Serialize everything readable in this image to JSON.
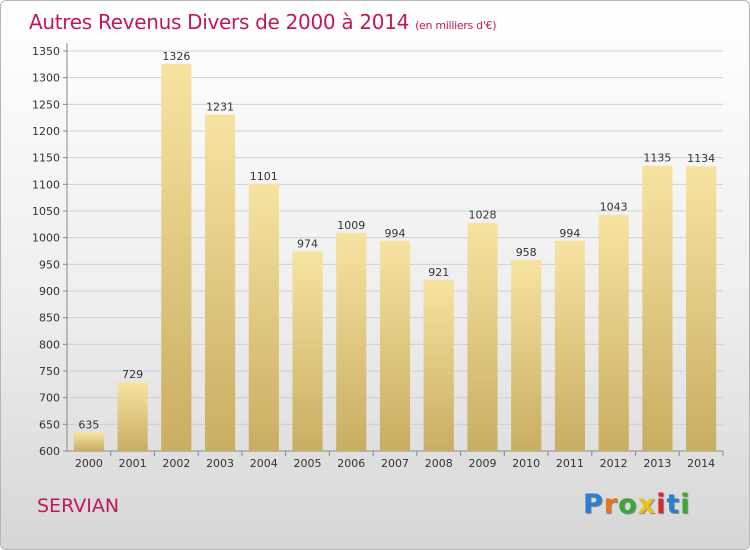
{
  "title": "Autres Revenus Divers de 2000 à 2014",
  "subtitle": "(en milliers d'€)",
  "place_name": "SERVIAN",
  "logo": {
    "letters": [
      "P",
      "r",
      "o",
      "x",
      "i",
      "t",
      "i"
    ],
    "colors": [
      "#2a7fd4",
      "#e8731a",
      "#3aa836",
      "#e8c11a",
      "#d62a2a",
      "#2a7fd4",
      "#3aa836"
    ]
  },
  "colors": {
    "accent": "#c2185b",
    "bar_top": "#f7e3a0",
    "bar_bottom": "#c9ad62",
    "grid": "#d0d0d0"
  },
  "chart_data": {
    "type": "bar",
    "title": "Autres Revenus Divers de 2000 à 2014",
    "subtitle": "(en milliers d'€)",
    "categories": [
      "2000",
      "2001",
      "2002",
      "2003",
      "2004",
      "2005",
      "2006",
      "2007",
      "2008",
      "2009",
      "2010",
      "2011",
      "2012",
      "2013",
      "2014"
    ],
    "values": [
      635,
      729,
      1326,
      1231,
      1101,
      974,
      1009,
      994,
      921,
      1028,
      958,
      994,
      1043,
      1135,
      1134
    ],
    "ylim": [
      600,
      1350
    ],
    "yticks": [
      600,
      650,
      700,
      750,
      800,
      850,
      900,
      950,
      1000,
      1050,
      1100,
      1150,
      1200,
      1250,
      1300,
      1350
    ],
    "grid": true,
    "data_labels": true
  }
}
